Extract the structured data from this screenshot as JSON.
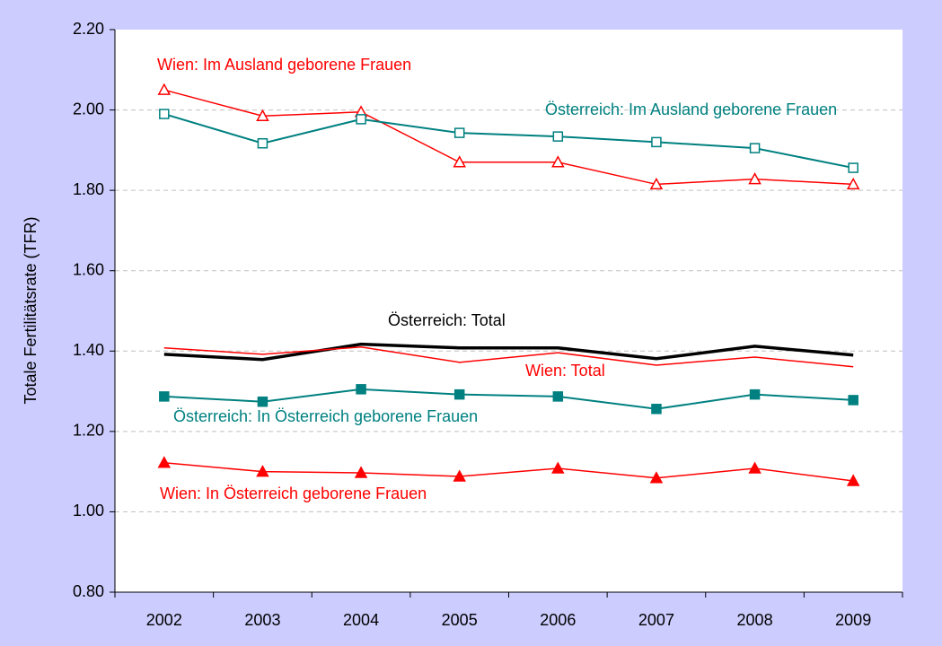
{
  "chart_data": {
    "type": "line",
    "y_label": "Totale Fertilitätsrate (TFR)",
    "categories": [
      "2002",
      "2003",
      "2004",
      "2005",
      "2006",
      "2007",
      "2008",
      "2009"
    ],
    "ylim": [
      0.8,
      2.2
    ],
    "yticks": [
      {
        "value": 0.8,
        "label": "0.80"
      },
      {
        "value": 1.0,
        "label": "1.00"
      },
      {
        "value": 1.2,
        "label": "1.20"
      },
      {
        "value": 1.4,
        "label": "1.40"
      },
      {
        "value": 1.6,
        "label": "1.60"
      },
      {
        "value": 1.8,
        "label": "1.80"
      },
      {
        "value": 2.0,
        "label": "2.00"
      },
      {
        "value": 2.2,
        "label": "2.20"
      }
    ],
    "grid": true,
    "series": [
      {
        "name": "Wien: Im Ausland geborene Frauen",
        "color": "#ff0000",
        "marker": "triangle-open",
        "values": [
          2.05,
          1.985,
          1.995,
          1.87,
          1.87,
          1.815,
          1.828,
          1.815
        ]
      },
      {
        "name": "Österreich: Im Ausland geborene Frauen",
        "color": "#008080",
        "marker": "square-open",
        "values": [
          1.99,
          1.917,
          1.977,
          1.943,
          1.934,
          1.92,
          1.905,
          1.856
        ]
      },
      {
        "name": "Österreich: Total",
        "color": "#000000",
        "marker": "none",
        "values": [
          1.392,
          1.379,
          1.417,
          1.408,
          1.408,
          1.381,
          1.412,
          1.39
        ]
      },
      {
        "name": "Wien: Total",
        "color": "#ff0000",
        "marker": "none",
        "values": [
          1.408,
          1.392,
          1.41,
          1.372,
          1.396,
          1.365,
          1.385,
          1.361
        ]
      },
      {
        "name": "Österreich: In Österreich geborene Frauen",
        "color": "#008080",
        "marker": "square",
        "values": [
          1.287,
          1.274,
          1.305,
          1.292,
          1.287,
          1.256,
          1.292,
          1.278
        ]
      },
      {
        "name": "Wien: In Österreich geborene Frauen",
        "color": "#ff0000",
        "marker": "triangle",
        "values": [
          1.122,
          1.1,
          1.097,
          1.088,
          1.108,
          1.084,
          1.108,
          1.077
        ]
      }
    ]
  }
}
